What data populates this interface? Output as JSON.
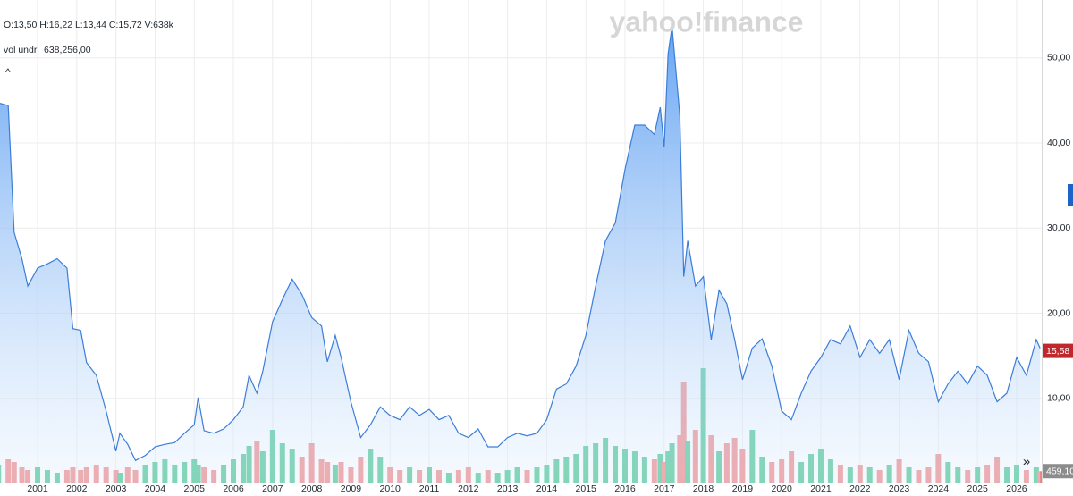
{
  "header": {
    "ohlcv": "O:13,50  H:16,22  L:13,44  C:15,72  V:638k",
    "volume_name": "vol undr",
    "volume_value": "638,256,00",
    "collapse": "^",
    "watermark": "yahoo!finance",
    "expand": "»"
  },
  "chart_data": {
    "type": "line",
    "x": [
      2000.0,
      2000.25,
      2000.4,
      2000.6,
      2000.75,
      2001.0,
      2001.25,
      2001.5,
      2001.75,
      2001.9,
      2002.1,
      2002.25,
      2002.5,
      2002.75,
      2003.0,
      2003.1,
      2003.3,
      2003.5,
      2003.75,
      2004.0,
      2004.25,
      2004.5,
      2004.75,
      2005.0,
      2005.1,
      2005.25,
      2005.5,
      2005.75,
      2006.0,
      2006.25,
      2006.4,
      2006.6,
      2006.75,
      2007.0,
      2007.25,
      2007.5,
      2007.75,
      2008.0,
      2008.25,
      2008.4,
      2008.6,
      2008.75,
      2009.0,
      2009.25,
      2009.5,
      2009.75,
      2010.0,
      2010.25,
      2010.5,
      2010.75,
      2011.0,
      2011.25,
      2011.5,
      2011.75,
      2012.0,
      2012.25,
      2012.5,
      2012.75,
      2013.0,
      2013.25,
      2013.5,
      2013.75,
      2014.0,
      2014.25,
      2014.5,
      2014.75,
      2015.0,
      2015.25,
      2015.5,
      2015.75,
      2016.0,
      2016.25,
      2016.5,
      2016.75,
      2016.9,
      2017.0,
      2017.1,
      2017.2,
      2017.4,
      2017.5,
      2017.6,
      2017.8,
      2018.0,
      2018.2,
      2018.4,
      2018.6,
      2018.8,
      2019.0,
      2019.25,
      2019.5,
      2019.75,
      2020.0,
      2020.25,
      2020.5,
      2020.75,
      2021.0,
      2021.25,
      2021.5,
      2021.75,
      2022.0,
      2022.25,
      2022.5,
      2022.75,
      2023.0,
      2023.25,
      2023.5,
      2023.75,
      2024.0,
      2024.25,
      2024.5,
      2024.75,
      2025.0,
      2025.25,
      2025.5,
      2025.75,
      2026.0,
      2026.25,
      2026.5,
      2026.6
    ],
    "series": [
      {
        "type": "line",
        "color": "#3b7dd8",
        "values": [
          44.7,
          44.4,
          29.5,
          26.4,
          23.2,
          25.3,
          25.8,
          26.4,
          25.3,
          18.2,
          18.0,
          14.2,
          12.7,
          8.5,
          3.8,
          5.9,
          4.6,
          2.7,
          3.3,
          4.3,
          4.6,
          4.8,
          5.9,
          6.9,
          10.1,
          6.2,
          5.9,
          6.4,
          7.5,
          9.0,
          12.7,
          10.6,
          13.2,
          19.0,
          21.6,
          24.0,
          22.2,
          19.5,
          18.5,
          14.3,
          17.4,
          14.8,
          9.6,
          5.4,
          6.9,
          9.0,
          8.0,
          7.5,
          9.0,
          8.0,
          8.7,
          7.5,
          8.0,
          5.9,
          5.4,
          6.4,
          4.3,
          4.3,
          5.4,
          5.9,
          5.6,
          5.9,
          7.5,
          11.1,
          11.7,
          13.8,
          17.4,
          23.2,
          28.5,
          30.6,
          36.9,
          42.1,
          42.1,
          41.0,
          44.2,
          39.5,
          50.5,
          53.7,
          43.2,
          24.3,
          28.5,
          23.2,
          24.3,
          16.9,
          22.7,
          21.1,
          16.9,
          12.2,
          15.9,
          17.0,
          13.8,
          8.5,
          7.5,
          10.6,
          13.2,
          14.8,
          16.9,
          16.4,
          18.5,
          14.8,
          16.9,
          15.3,
          16.9,
          12.2,
          18.0,
          15.3,
          14.3,
          9.6,
          11.7,
          13.2,
          11.7,
          13.8,
          12.7,
          9.6,
          10.6,
          14.8,
          12.7,
          16.9,
          15.9
        ]
      },
      {
        "type": "bar",
        "axis": "y2",
        "up_color": "#3fc28a",
        "down_color": "#ef7f7f",
        "values": [
          700,
          900,
          800,
          600,
          500,
          600,
          500,
          400,
          500,
          600,
          500,
          600,
          700,
          600,
          500,
          400,
          600,
          500,
          700,
          800,
          900,
          700,
          800,
          900,
          700,
          600,
          500,
          700,
          900,
          1100,
          1400,
          1600,
          1200,
          2000,
          1500,
          1300,
          1000,
          1500,
          900,
          800,
          700,
          800,
          600,
          1000,
          1300,
          1000,
          600,
          500,
          600,
          500,
          600,
          500,
          400,
          500,
          600,
          400,
          500,
          400,
          500,
          600,
          500,
          600,
          700,
          900,
          1000,
          1100,
          1400,
          1500,
          1700,
          1400,
          1300,
          1200,
          1000,
          900,
          1100,
          800,
          1200,
          1500,
          1800,
          3800,
          1600,
          2000,
          4300,
          1800,
          1200,
          1500,
          1700,
          1300,
          2000,
          1000,
          800,
          900,
          1200,
          800,
          1100,
          1300,
          900,
          700,
          600,
          700,
          600,
          500,
          700,
          900,
          600,
          500,
          600,
          1100,
          800,
          600,
          500,
          600,
          700,
          1000,
          600,
          700,
          500,
          600,
          459.1
        ]
      }
    ],
    "xlim": [
      2000.04,
      2026.64
    ],
    "xticks": [
      2001,
      2002,
      2003,
      2004,
      2005,
      2006,
      2007,
      2008,
      2009,
      2010,
      2011,
      2012,
      2013,
      2014,
      2015,
      2016,
      2017,
      2018,
      2019,
      2020,
      2021,
      2022,
      2023,
      2024,
      2025,
      2026
    ],
    "ylim": [
      0,
      56.8
    ],
    "yticks": [
      {
        "value": 10,
        "label": "10,00"
      },
      {
        "value": 20,
        "label": "20,00"
      },
      {
        "value": 30,
        "label": "30,00"
      },
      {
        "value": 40,
        "label": "40,00"
      },
      {
        "value": 50,
        "label": "50,00"
      }
    ],
    "y2lim": [
      0,
      5000
    ],
    "last_price": {
      "value": 15.58,
      "label": "15,58",
      "color": "#c0282d"
    },
    "last_volume": {
      "value": 459.1,
      "label": "459,10",
      "color": "#8c8c8c"
    },
    "grid": true
  }
}
